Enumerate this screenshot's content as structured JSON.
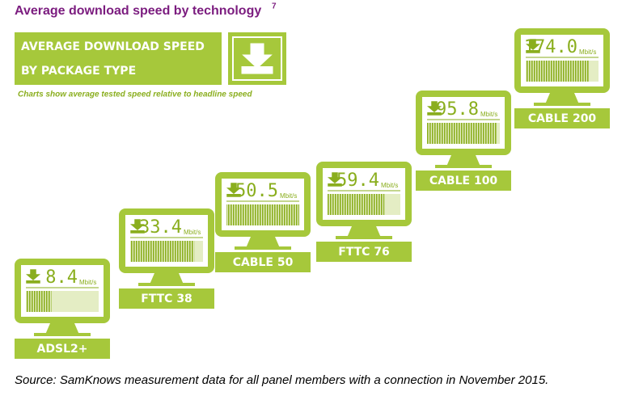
{
  "chart_data": {
    "type": "monitor",
    "title": "Average download speed by technology",
    "title_note": "7",
    "banner": [
      "AVERAGE DOWNLOAD SPEED",
      "BY PACKAGE TYPE"
    ],
    "subtitle": "Charts show average tested speed relative to headline speed",
    "unit": "Mbit/s",
    "categories": [
      "ADSL2+",
      "FTTC 38",
      "CABLE 50",
      "FTTC 76",
      "CABLE 100",
      "CABLE 200"
    ],
    "values": [
      8.4,
      33.4,
      50.5,
      59.4,
      95.8,
      174.0
    ],
    "value_labels": [
      "8.4",
      "33.4",
      "50.5",
      "59.4",
      "95.8",
      "174.0"
    ],
    "relative": [
      35,
      88,
      100,
      78,
      96,
      87
    ],
    "relative_lim": [
      0,
      100
    ],
    "color": "#a6c83b",
    "source": "Source: SamKnows measurement data for all panel members with a connection in November 2015."
  }
}
